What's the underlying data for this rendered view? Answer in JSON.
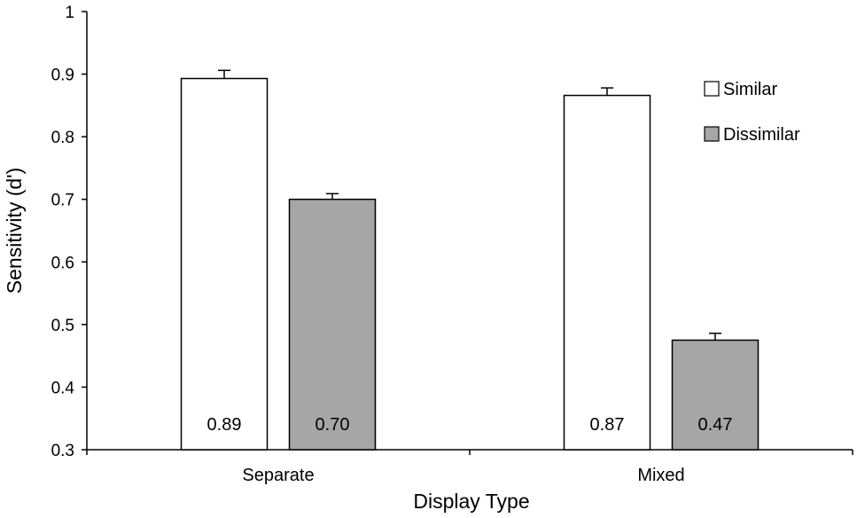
{
  "chart_data": {
    "type": "bar",
    "xlabel": "Display Type",
    "ylabel": "Sensitivity (d')",
    "ylim": [
      0.3,
      1.0
    ],
    "yticks": [
      0.3,
      0.4,
      0.5,
      0.6,
      0.7,
      0.8,
      0.9,
      1
    ],
    "ytick_labels": [
      "0.3",
      "0.4",
      "0.5",
      "0.6",
      "0.7",
      "0.8",
      "0.9",
      "1"
    ],
    "categories": [
      "Separate",
      "Mixed"
    ],
    "series": [
      {
        "name": "Similar",
        "values": [
          0.893,
          0.866
        ],
        "errors": [
          0.013,
          0.012
        ],
        "labels": [
          "0.89",
          "0.87"
        ],
        "color": "#ffffff"
      },
      {
        "name": "Dissimilar",
        "values": [
          0.7,
          0.475
        ],
        "errors": [
          0.009,
          0.011
        ],
        "labels": [
          "0.70",
          "0.47"
        ],
        "color": "#a6a6a6"
      }
    ],
    "legend_position": "top-right",
    "grid": false
  }
}
